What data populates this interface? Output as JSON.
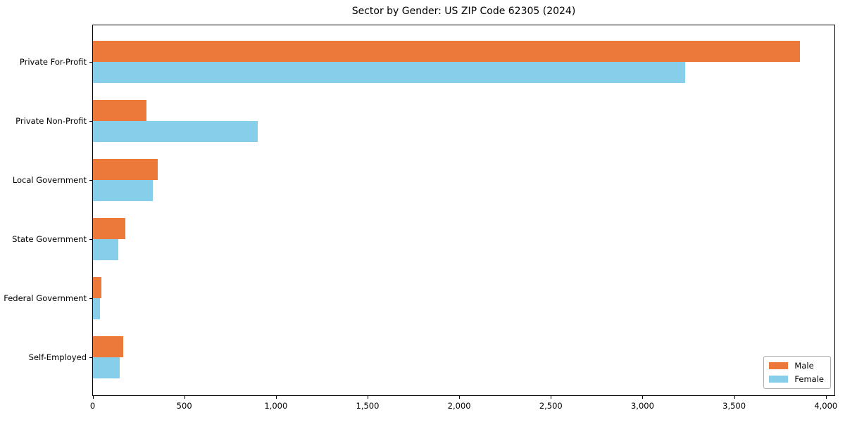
{
  "chart_data": {
    "type": "bar",
    "orientation": "horizontal",
    "title": "Sector by Gender: US ZIP Code 62305 (2024)",
    "categories": [
      "Private For-Profit",
      "Private Non-Profit",
      "Local Government",
      "State Government",
      "Federal Government",
      "Self-Employed"
    ],
    "series": [
      {
        "name": "Male",
        "color": "#ec7939",
        "values": [
          3855,
          290,
          355,
          175,
          45,
          165
        ]
      },
      {
        "name": "Female",
        "color": "#87ceeb",
        "values": [
          3230,
          900,
          325,
          140,
          40,
          145
        ]
      }
    ],
    "xlabel": "",
    "ylabel": "",
    "xlim": [
      0,
      4045
    ],
    "xticks": {
      "values": [
        0,
        500,
        1000,
        1500,
        2000,
        2500,
        3000,
        3500,
        4000
      ],
      "labels": [
        "0",
        "500",
        "1,000",
        "1,500",
        "2,000",
        "2,500",
        "3,000",
        "3,500",
        "4,000"
      ]
    },
    "grid": false,
    "legend": {
      "position": "lower right"
    }
  }
}
